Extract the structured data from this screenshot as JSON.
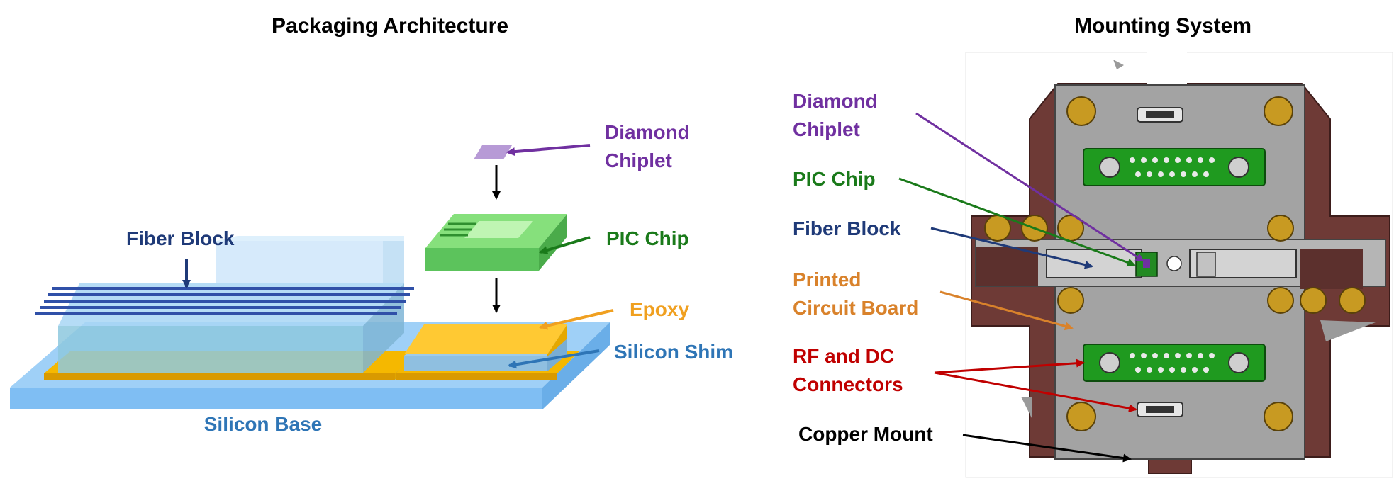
{
  "left_panel": {
    "title": "Packaging Architecture",
    "labels": {
      "diamond_line1": "Diamond",
      "diamond_line2": "Chiplet",
      "pic": "PIC Chip",
      "fiber": "Fiber Block",
      "epoxy": "Epoxy",
      "shim": "Silicon Shim",
      "base": "Silicon Base"
    }
  },
  "right_panel": {
    "title": "Mounting System",
    "labels": {
      "diamond_line1": "Diamond",
      "diamond_line2": "Chiplet",
      "pic": "PIC Chip",
      "fiber": "Fiber Block",
      "pcb_line1": "Printed",
      "pcb_line2": "Circuit Board",
      "rf_line1": "RF and DC",
      "rf_line2": "Connectors",
      "copper": "Copper Mount"
    }
  },
  "colors": {
    "diamond": "#7030a0",
    "pic": "#1a7a1a",
    "fiber": "#1f3a78",
    "epoxy": "#f0a020",
    "shim": "#2e75b6",
    "base": "#2e75b6",
    "pcb": "#d9822b",
    "rf": "#c00000",
    "copper": "#000000"
  }
}
